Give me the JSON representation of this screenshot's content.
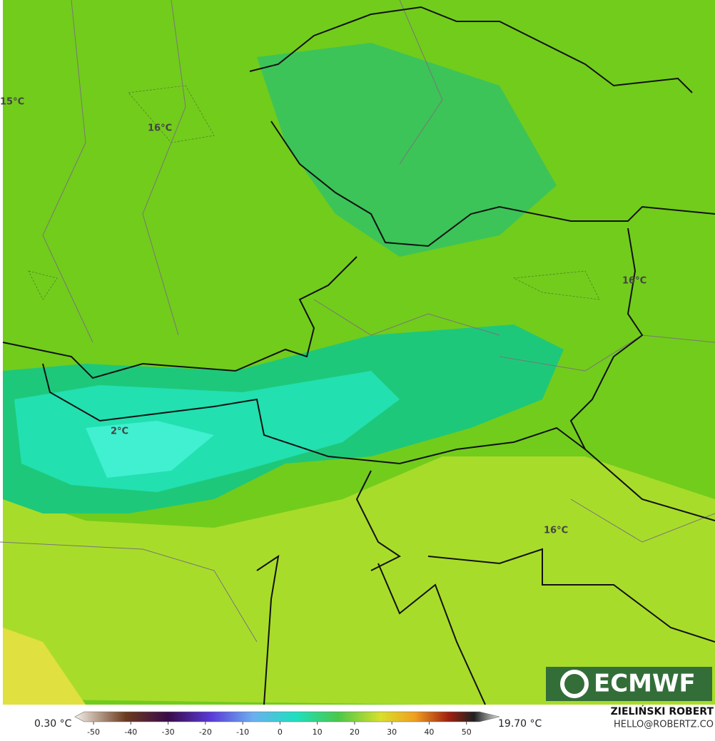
{
  "map": {
    "labels": [
      "15°C",
      "16°C",
      "16°C",
      "2°C",
      "16°C"
    ],
    "logo": "ECMWF"
  },
  "colorbar": {
    "min_label": "0.30 °C",
    "max_label": "19.70 °C",
    "ticks": [
      -50,
      -40,
      -30,
      -20,
      -10,
      0,
      10,
      20,
      30,
      40,
      50
    ],
    "lim": [
      -52.5,
      53.5
    ]
  },
  "credit": {
    "author": "ZIELIŃSKI ROBERT",
    "email": "HELLO@ROBERTZ.CO"
  }
}
